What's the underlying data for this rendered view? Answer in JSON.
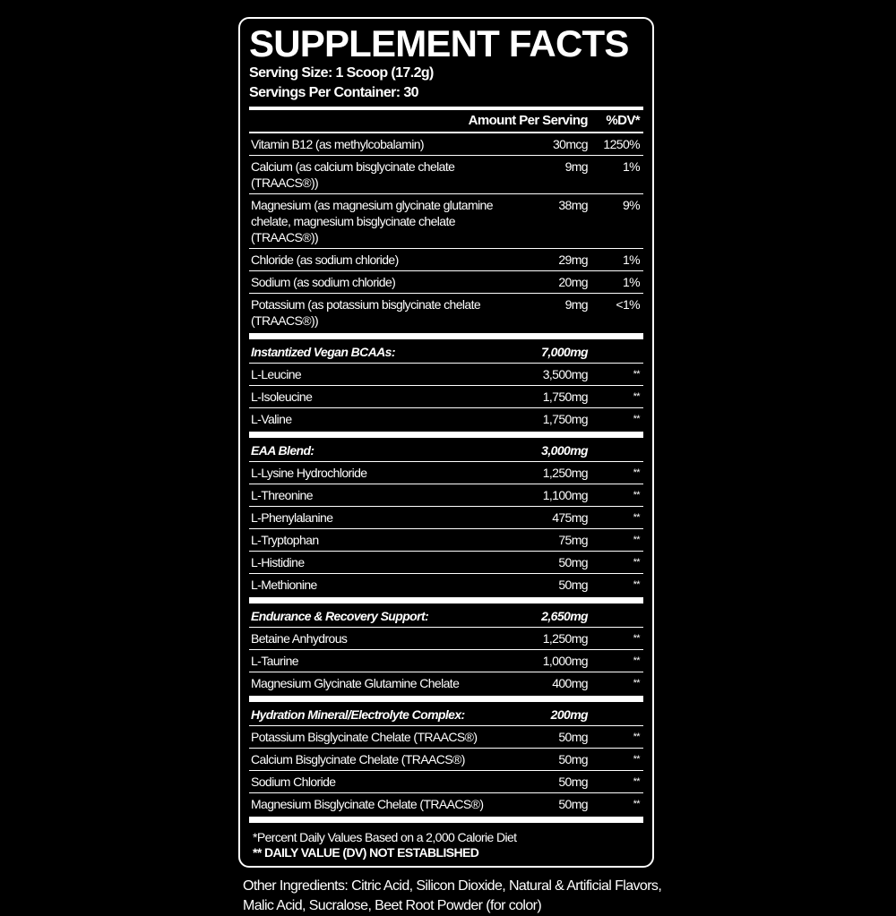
{
  "title": "SUPPLEMENT FACTS",
  "serving_size": "Serving Size: 1 Scoop (17.2g)",
  "servings_per_container": "Servings Per Container: 30",
  "header": {
    "amount": "Amount Per Serving",
    "dv": "%DV*"
  },
  "vitamins": [
    {
      "name": "Vitamin B12 (as methylcobalamin)",
      "amount": "30mcg",
      "dv": "1250%"
    },
    {
      "name": "Calcium (as calcium bisglycinate chelate (TRAACS®))",
      "amount": "9mg",
      "dv": "1%"
    },
    {
      "name": "Magnesium (as magnesium glycinate glutamine chelate, magnesium bisglycinate chelate (TRAACS®))",
      "amount": "38mg",
      "dv": "9%"
    },
    {
      "name": "Chloride (as sodium chloride)",
      "amount": "29mg",
      "dv": "1%"
    },
    {
      "name": "Sodium (as sodium chloride)",
      "amount": "20mg",
      "dv": "1%"
    },
    {
      "name": "Potassium (as potassium bisglycinate chelate (TRAACS®))",
      "amount": "9mg",
      "dv": "<1%"
    }
  ],
  "sections": [
    {
      "name": "Instantized Vegan BCAAs:",
      "amount": "7,000mg",
      "items": [
        {
          "name": "L-Leucine",
          "amount": "3,500mg",
          "dv": "**"
        },
        {
          "name": "L-Isoleucine",
          "amount": "1,750mg",
          "dv": "**"
        },
        {
          "name": "L-Valine",
          "amount": "1,750mg",
          "dv": "**"
        }
      ]
    },
    {
      "name": "EAA Blend:",
      "amount": "3,000mg",
      "items": [
        {
          "name": "L-Lysine Hydrochloride",
          "amount": "1,250mg",
          "dv": "**"
        },
        {
          "name": "L-Threonine",
          "amount": "1,100mg",
          "dv": "**"
        },
        {
          "name": "L-Phenylalanine",
          "amount": "475mg",
          "dv": "**"
        },
        {
          "name": "L-Tryptophan",
          "amount": "75mg",
          "dv": "**"
        },
        {
          "name": "L-Histidine",
          "amount": "50mg",
          "dv": "**"
        },
        {
          "name": "L-Methionine",
          "amount": "50mg",
          "dv": "**"
        }
      ]
    },
    {
      "name": "Endurance & Recovery Support:",
      "amount": "2,650mg",
      "items": [
        {
          "name": "Betaine Anhydrous",
          "amount": "1,250mg",
          "dv": "**"
        },
        {
          "name": "L-Taurine",
          "amount": "1,000mg",
          "dv": "**"
        },
        {
          "name": "Magnesium Glycinate Glutamine Chelate",
          "amount": "400mg",
          "dv": "**"
        }
      ]
    },
    {
      "name": "Hydration Mineral/Electrolyte Complex:",
      "amount": "200mg",
      "items": [
        {
          "name": "Potassium Bisglycinate Chelate (TRAACS®)",
          "amount": "50mg",
          "dv": "**"
        },
        {
          "name": "Calcium Bisglycinate Chelate (TRAACS®)",
          "amount": "50mg",
          "dv": "**"
        },
        {
          "name": "Sodium Chloride",
          "amount": "50mg",
          "dv": "**"
        },
        {
          "name": "Magnesium Bisglycinate Chelate (TRAACS®)",
          "amount": "50mg",
          "dv": "**"
        }
      ]
    }
  ],
  "footnote1": "*Percent Daily Values Based on a 2,000 Calorie Diet",
  "footnote2": "** DAILY VALUE (DV) NOT ESTABLISHED",
  "other_ingredients": "Other Ingredients: Citric Acid, Silicon Dioxide, Natural & Artificial Flavors, Malic Acid, Sucralose, Beet Root Powder (for color)"
}
